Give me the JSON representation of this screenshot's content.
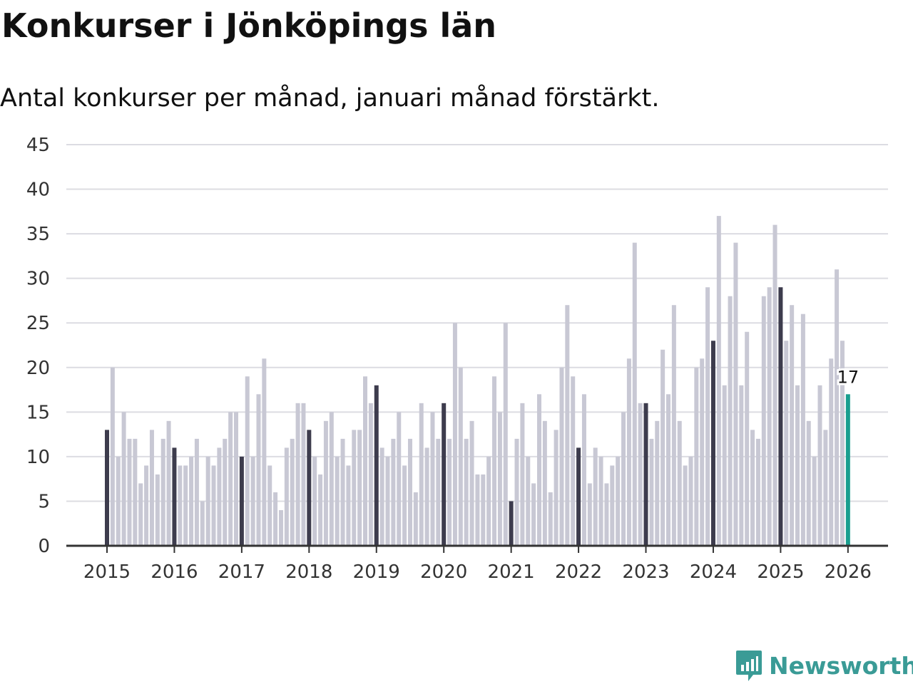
{
  "title": "Konkurser i Jönköpings län",
  "subtitle": "Antal konkurser per månad, januari månad förstärkt.",
  "brand": {
    "name": "Newsworthy",
    "icon": "bar-chart-speech-bubble-icon"
  },
  "colors": {
    "regular_bar": "#c8c8d4",
    "january_bar": "#3d3c4d",
    "latest_bar": "#1a9e8f",
    "grid": "#dcdce2",
    "axis": "#333333",
    "brand": "#3a9b96"
  },
  "chart_data": {
    "type": "bar",
    "title": "Konkurser i Jönköpings län",
    "subtitle": "Antal konkurser per månad, januari månad förstärkt.",
    "xlabel": "",
    "ylabel": "",
    "ylim": [
      0,
      45
    ],
    "yticks": [
      0,
      5,
      10,
      15,
      20,
      25,
      30,
      35,
      40,
      45
    ],
    "xticks": [
      "2015",
      "2016",
      "2017",
      "2018",
      "2019",
      "2020",
      "2021",
      "2022",
      "2023",
      "2024",
      "2025",
      "2026"
    ],
    "grid": true,
    "start": "2015-01",
    "frequency": "monthly",
    "highlight": "january",
    "latest_label": "17",
    "values": [
      13,
      20,
      10,
      15,
      12,
      12,
      7,
      9,
      13,
      8,
      12,
      14,
      11,
      9,
      9,
      10,
      12,
      5,
      10,
      9,
      11,
      12,
      15,
      15,
      10,
      19,
      10,
      17,
      21,
      9,
      6,
      4,
      11,
      12,
      16,
      16,
      13,
      10,
      8,
      14,
      15,
      10,
      12,
      9,
      13,
      13,
      19,
      16,
      18,
      11,
      10,
      12,
      15,
      9,
      12,
      6,
      16,
      11,
      15,
      12,
      16,
      12,
      25,
      20,
      12,
      14,
      8,
      8,
      10,
      19,
      15,
      25,
      5,
      12,
      16,
      10,
      7,
      17,
      14,
      6,
      13,
      20,
      27,
      19,
      11,
      17,
      7,
      11,
      10,
      7,
      9,
      10,
      15,
      21,
      34,
      16,
      16,
      12,
      14,
      22,
      17,
      27,
      14,
      9,
      10,
      20,
      21,
      29,
      23,
      37,
      18,
      28,
      34,
      18,
      24,
      13,
      12,
      28,
      29,
      36,
      29,
      23,
      27,
      18,
      26,
      14,
      10,
      18,
      13,
      21,
      31,
      23,
      17
    ]
  }
}
